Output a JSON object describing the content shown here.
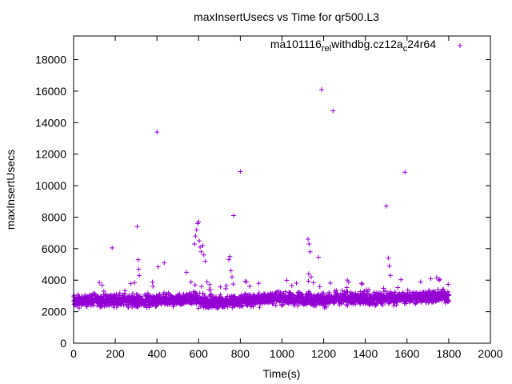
{
  "chart_data": {
    "type": "scatter",
    "title": "maxInsertUsecs vs Time for qr500.L3",
    "xlabel": "Time(s)",
    "ylabel": "maxInsertUsecs",
    "xlim": [
      0,
      2000
    ],
    "ylim": [
      0,
      19500
    ],
    "x_ticks": [
      0,
      200,
      400,
      600,
      800,
      1000,
      1200,
      1400,
      1600,
      1800,
      2000
    ],
    "y_ticks": [
      0,
      2000,
      4000,
      6000,
      8000,
      10000,
      12000,
      14000,
      16000,
      18000
    ],
    "grid": false,
    "legend_position": "top-right",
    "series": [
      {
        "name": "ma101116_rel_withdbg.cz12a_c24r64",
        "legend_parts": {
          "base1": "ma101116",
          "sub1": "rel",
          "base2": "withdbg.cz12a",
          "sub2": "c",
          "base3": "24r64"
        },
        "color": "#9400d3",
        "marker": "plus",
        "baseline": [
          [
            0,
            2650
          ],
          [
            100,
            2700
          ],
          [
            200,
            2750
          ],
          [
            300,
            2650
          ],
          [
            400,
            2700
          ],
          [
            500,
            2750
          ],
          [
            580,
            2850
          ],
          [
            620,
            2600
          ],
          [
            700,
            2600
          ],
          [
            800,
            2700
          ],
          [
            900,
            2800
          ],
          [
            1000,
            2850
          ],
          [
            1100,
            2800
          ],
          [
            1200,
            2750
          ],
          [
            1300,
            2850
          ],
          [
            1400,
            2800
          ],
          [
            1500,
            2850
          ],
          [
            1600,
            2900
          ],
          [
            1700,
            2950
          ],
          [
            1800,
            3000
          ]
        ],
        "outliers": [
          [
            185,
            6050
          ],
          [
            305,
            7400
          ],
          [
            310,
            5300
          ],
          [
            312,
            4700
          ],
          [
            315,
            4300
          ],
          [
            400,
            13400
          ],
          [
            405,
            4850
          ],
          [
            435,
            5100
          ],
          [
            542,
            4500
          ],
          [
            580,
            6300
          ],
          [
            585,
            6800
          ],
          [
            590,
            7200
          ],
          [
            595,
            7600
          ],
          [
            600,
            7700
          ],
          [
            603,
            6500
          ],
          [
            607,
            6100
          ],
          [
            612,
            5800
          ],
          [
            620,
            6200
          ],
          [
            625,
            5600
          ],
          [
            632,
            5200
          ],
          [
            640,
            3900
          ],
          [
            650,
            3400
          ],
          [
            745,
            5300
          ],
          [
            750,
            5500
          ],
          [
            755,
            4600
          ],
          [
            760,
            4200
          ],
          [
            768,
            8100
          ],
          [
            800,
            10900
          ],
          [
            830,
            3900
          ],
          [
            1125,
            6600
          ],
          [
            1130,
            6300
          ],
          [
            1135,
            5800
          ],
          [
            1128,
            4400
          ],
          [
            1140,
            4200
          ],
          [
            1175,
            5450
          ],
          [
            1190,
            16100
          ],
          [
            1245,
            14750
          ],
          [
            1385,
            3750
          ],
          [
            1500,
            8700
          ],
          [
            1510,
            5400
          ],
          [
            1515,
            4900
          ],
          [
            1520,
            4300
          ],
          [
            1590,
            10850
          ]
        ]
      }
    ]
  }
}
